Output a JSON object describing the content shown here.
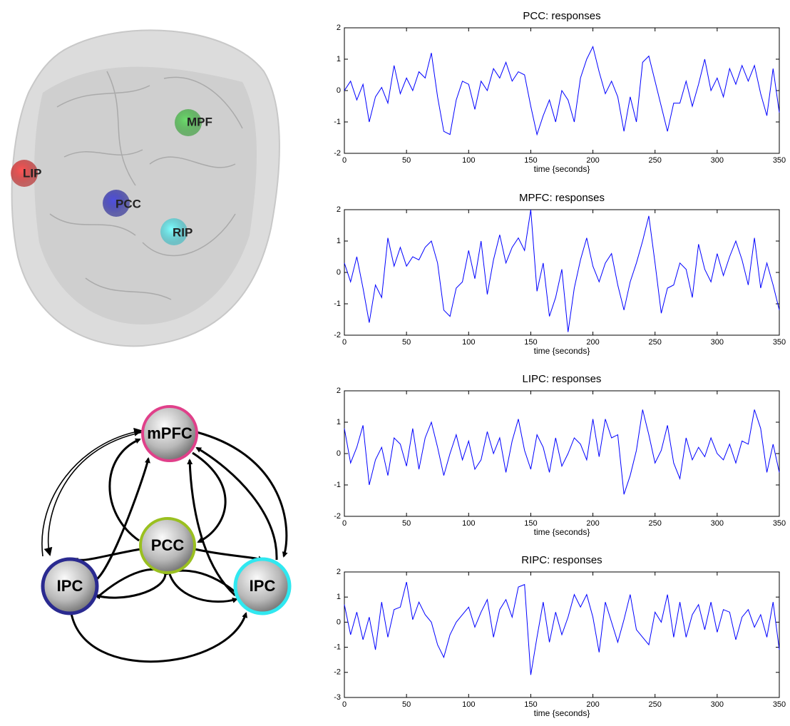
{
  "chart_data": [
    {
      "type": "line",
      "title": "PCC: responses",
      "x_label": "time {seconds}",
      "color": "#0000ff",
      "xlim": [
        0,
        350
      ],
      "ylim": [
        -2,
        2
      ],
      "xticks": [
        0,
        50,
        100,
        150,
        200,
        250,
        300,
        350
      ],
      "yticks": [
        -2,
        -1,
        0,
        1,
        2
      ],
      "x": [
        0,
        5,
        10,
        15,
        20,
        25,
        30,
        35,
        40,
        45,
        50,
        55,
        60,
        65,
        70,
        75,
        80,
        85,
        90,
        95,
        100,
        105,
        110,
        115,
        120,
        125,
        130,
        135,
        140,
        145,
        150,
        155,
        160,
        165,
        170,
        175,
        180,
        185,
        190,
        195,
        200,
        205,
        210,
        215,
        220,
        225,
        230,
        235,
        240,
        245,
        250,
        255,
        260,
        265,
        270,
        275,
        280,
        285,
        290,
        295,
        300,
        305,
        310,
        315,
        320,
        325,
        330,
        335,
        340,
        345,
        350
      ],
      "values": [
        0,
        0.3,
        -0.3,
        0.2,
        -1.0,
        -0.2,
        0.1,
        -0.4,
        0.8,
        -0.1,
        0.4,
        0.0,
        0.6,
        0.4,
        1.2,
        -0.2,
        -1.3,
        -1.4,
        -0.3,
        0.3,
        0.2,
        -0.6,
        0.3,
        0.0,
        0.7,
        0.4,
        0.9,
        0.3,
        0.6,
        0.5,
        -0.5,
        -1.4,
        -0.8,
        -0.3,
        -1.0,
        0.0,
        -0.3,
        -1.0,
        0.4,
        1.0,
        1.4,
        0.6,
        -0.1,
        0.3,
        -0.2,
        -1.3,
        -0.2,
        -1.0,
        0.9,
        1.1,
        0.3,
        -0.5,
        -1.3,
        -0.4,
        -0.4,
        0.3,
        -0.5,
        0.2,
        1.0,
        0.0,
        0.4,
        -0.2,
        0.7,
        0.2,
        0.8,
        0.3,
        0.8,
        -0.1,
        -0.8,
        0.7,
        -0.7
      ]
    },
    {
      "type": "line",
      "title": "MPFC: responses",
      "x_label": "time {seconds}",
      "color": "#0000ff",
      "xlim": [
        0,
        350
      ],
      "ylim": [
        -2,
        2
      ],
      "xticks": [
        0,
        50,
        100,
        150,
        200,
        250,
        300,
        350
      ],
      "yticks": [
        -2,
        -1,
        0,
        1,
        2
      ],
      "x": [
        0,
        5,
        10,
        15,
        20,
        25,
        30,
        35,
        40,
        45,
        50,
        55,
        60,
        65,
        70,
        75,
        80,
        85,
        90,
        95,
        100,
        105,
        110,
        115,
        120,
        125,
        130,
        135,
        140,
        145,
        150,
        155,
        160,
        165,
        170,
        175,
        180,
        185,
        190,
        195,
        200,
        205,
        210,
        215,
        220,
        225,
        230,
        235,
        240,
        245,
        250,
        255,
        260,
        265,
        270,
        275,
        280,
        285,
        290,
        295,
        300,
        305,
        310,
        315,
        320,
        325,
        330,
        335,
        340,
        345,
        350
      ],
      "values": [
        0.3,
        -0.3,
        0.5,
        -0.5,
        -1.6,
        -0.4,
        -0.8,
        1.1,
        0.2,
        0.8,
        0.2,
        0.5,
        0.4,
        0.8,
        1.0,
        0.3,
        -1.2,
        -1.4,
        -0.5,
        -0.3,
        0.7,
        -0.2,
        1.0,
        -0.7,
        0.4,
        1.2,
        0.3,
        0.8,
        1.1,
        0.7,
        2.0,
        -0.6,
        0.3,
        -1.4,
        -0.8,
        0.1,
        -1.9,
        -0.5,
        0.4,
        1.1,
        0.2,
        -0.3,
        0.3,
        0.6,
        -0.4,
        -1.2,
        -0.3,
        0.3,
        1.0,
        1.8,
        0.3,
        -1.3,
        -0.5,
        -0.4,
        0.3,
        0.1,
        -0.8,
        0.9,
        0.1,
        -0.3,
        0.6,
        -0.1,
        0.5,
        1.0,
        0.4,
        -0.4,
        1.1,
        -0.5,
        0.3,
        -0.4,
        -1.2
      ]
    },
    {
      "type": "line",
      "title": "LIPC: responses",
      "x_label": "time {seconds}",
      "color": "#0000ff",
      "xlim": [
        0,
        350
      ],
      "ylim": [
        -2,
        2
      ],
      "xticks": [
        0,
        50,
        100,
        150,
        200,
        250,
        300,
        350
      ],
      "yticks": [
        -2,
        -1,
        0,
        1,
        2
      ],
      "x": [
        0,
        5,
        10,
        15,
        20,
        25,
        30,
        35,
        40,
        45,
        50,
        55,
        60,
        65,
        70,
        75,
        80,
        85,
        90,
        95,
        100,
        105,
        110,
        115,
        120,
        125,
        130,
        135,
        140,
        145,
        150,
        155,
        160,
        165,
        170,
        175,
        180,
        185,
        190,
        195,
        200,
        205,
        210,
        215,
        220,
        225,
        230,
        235,
        240,
        245,
        250,
        255,
        260,
        265,
        270,
        275,
        280,
        285,
        290,
        295,
        300,
        305,
        310,
        315,
        320,
        325,
        330,
        335,
        340,
        345,
        350
      ],
      "values": [
        0.8,
        -0.3,
        0.2,
        0.9,
        -1.0,
        -0.2,
        0.2,
        -0.7,
        0.5,
        0.3,
        -0.4,
        0.8,
        -0.5,
        0.5,
        1.0,
        0.2,
        -0.7,
        0.0,
        0.6,
        -0.2,
        0.4,
        -0.5,
        -0.2,
        0.7,
        0.0,
        0.5,
        -0.6,
        0.4,
        1.1,
        0.1,
        -0.5,
        0.6,
        0.2,
        -0.6,
        0.5,
        -0.4,
        0.0,
        0.5,
        0.3,
        -0.2,
        1.1,
        -0.1,
        1.1,
        0.5,
        0.6,
        -1.3,
        -0.7,
        0.1,
        1.4,
        0.6,
        -0.3,
        0.1,
        0.9,
        -0.3,
        -0.8,
        0.5,
        -0.2,
        0.2,
        -0.1,
        0.5,
        0.0,
        -0.2,
        0.3,
        -0.3,
        0.4,
        0.3,
        1.4,
        0.8,
        -0.6,
        0.3,
        -0.6
      ]
    },
    {
      "type": "line",
      "title": "RIPC: responses",
      "x_label": "time {seconds}",
      "color": "#0000ff",
      "xlim": [
        0,
        350
      ],
      "ylim": [
        -3,
        2
      ],
      "xticks": [
        0,
        50,
        100,
        150,
        200,
        250,
        300,
        350
      ],
      "yticks": [
        -3,
        -2,
        -1,
        0,
        1,
        2
      ],
      "x": [
        0,
        5,
        10,
        15,
        20,
        25,
        30,
        35,
        40,
        45,
        50,
        55,
        60,
        65,
        70,
        75,
        80,
        85,
        90,
        95,
        100,
        105,
        110,
        115,
        120,
        125,
        130,
        135,
        140,
        145,
        150,
        155,
        160,
        165,
        170,
        175,
        180,
        185,
        190,
        195,
        200,
        205,
        210,
        215,
        220,
        225,
        230,
        235,
        240,
        245,
        250,
        255,
        260,
        265,
        270,
        275,
        280,
        285,
        290,
        295,
        300,
        305,
        310,
        315,
        320,
        325,
        330,
        335,
        340,
        345,
        350
      ],
      "values": [
        0.7,
        -0.5,
        0.4,
        -0.7,
        0.2,
        -1.1,
        0.8,
        -0.6,
        0.5,
        0.6,
        1.6,
        0.1,
        0.8,
        0.3,
        0.0,
        -0.9,
        -1.4,
        -0.5,
        0.0,
        0.3,
        0.6,
        -0.2,
        0.4,
        0.9,
        -0.6,
        0.5,
        0.9,
        0.2,
        1.4,
        1.5,
        -2.1,
        -0.6,
        0.8,
        -0.8,
        0.4,
        -0.5,
        0.2,
        1.1,
        0.6,
        1.1,
        0.2,
        -1.2,
        0.8,
        0.0,
        -0.8,
        0.1,
        1.1,
        -0.3,
        -0.6,
        -0.9,
        0.4,
        0.0,
        1.1,
        -0.6,
        0.8,
        -0.6,
        0.3,
        0.7,
        -0.3,
        0.8,
        -0.4,
        0.5,
        0.4,
        -0.7,
        0.2,
        0.5,
        -0.2,
        0.3,
        -0.6,
        0.8,
        -1.1
      ]
    }
  ],
  "brain": {
    "labels": [
      "LIP",
      "MPF",
      "PCC",
      "RIP"
    ]
  },
  "network": {
    "nodes": [
      "mPFC",
      "PCC",
      "IPC",
      "IPC"
    ]
  }
}
